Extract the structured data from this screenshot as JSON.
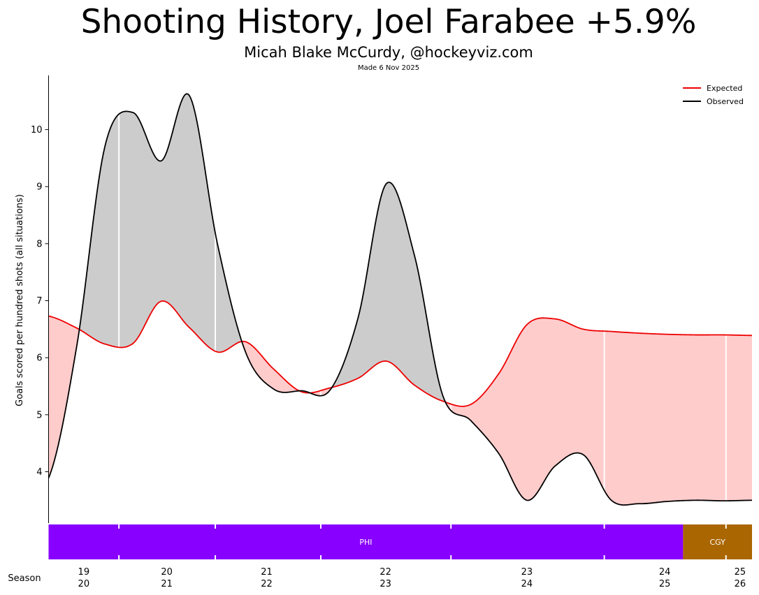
{
  "header": {
    "title": "Shooting History, Joel Farabee +5.9%",
    "subtitle": "Micah Blake McCurdy, @hockeyviz.com",
    "made": "Made 6 Nov 2025"
  },
  "colors": {
    "expected": "#ee0000",
    "observed": "#000000",
    "above_fill": "#cccccc",
    "below_fill": "#ffcccc",
    "team_PHI": "#8800ff",
    "team_CGY": "#aa6600"
  },
  "chart_data": {
    "type": "line",
    "ylabel": "Goals scored per hundred shots (all situations)",
    "xlabel": "Season",
    "ylim": [
      3.1,
      10.95
    ],
    "yticks": [
      4,
      5,
      6,
      7,
      8,
      9,
      10
    ],
    "xlim": [
      0,
      100
    ],
    "x": [
      0,
      4,
      8,
      12,
      16,
      20,
      24,
      28,
      32,
      36,
      40,
      44,
      48,
      52,
      56,
      60,
      64,
      68,
      72,
      76,
      80,
      84,
      88,
      92,
      96,
      100
    ],
    "series": [
      {
        "name": "Expected",
        "values": [
          6.73,
          6.52,
          6.24,
          6.25,
          6.99,
          6.53,
          6.1,
          6.28,
          5.8,
          5.4,
          5.47,
          5.64,
          5.94,
          5.52,
          5.24,
          5.18,
          5.72,
          6.58,
          6.68,
          6.5,
          6.46,
          6.43,
          6.41,
          6.4,
          6.4,
          6.39
        ]
      },
      {
        "name": "Observed",
        "values": [
          3.89,
          6.2,
          9.7,
          10.3,
          9.45,
          10.6,
          8.0,
          6.1,
          5.45,
          5.42,
          5.43,
          6.7,
          9.05,
          7.8,
          5.35,
          4.9,
          4.32,
          3.5,
          4.1,
          4.3,
          3.5,
          3.44,
          3.48,
          3.5,
          3.49,
          3.5
        ]
      }
    ],
    "legend": {
      "position": "top-right",
      "entries": [
        "Expected",
        "Observed"
      ]
    },
    "season_dividers": [
      10,
      23.7,
      38.7,
      57.2,
      79,
      96.3
    ],
    "season_ticks": [
      {
        "x": 5,
        "label_top": "19",
        "label_bottom": "20"
      },
      {
        "x": 16.8,
        "label_top": "20",
        "label_bottom": "21"
      },
      {
        "x": 31,
        "label_top": "21",
        "label_bottom": "22"
      },
      {
        "x": 47.9,
        "label_top": "22",
        "label_bottom": "23"
      },
      {
        "x": 68,
        "label_top": "23",
        "label_bottom": "24"
      },
      {
        "x": 87.6,
        "label_top": "24",
        "label_bottom": "25"
      },
      {
        "x": 98.3,
        "label_top": "25",
        "label_bottom": "26"
      }
    ],
    "teams": [
      {
        "name": "PHI",
        "start": 0,
        "end": 90.2,
        "color": "#8800ff"
      },
      {
        "name": "CGY",
        "start": 90.2,
        "end": 100,
        "color": "#aa6600"
      }
    ],
    "grid": false
  }
}
